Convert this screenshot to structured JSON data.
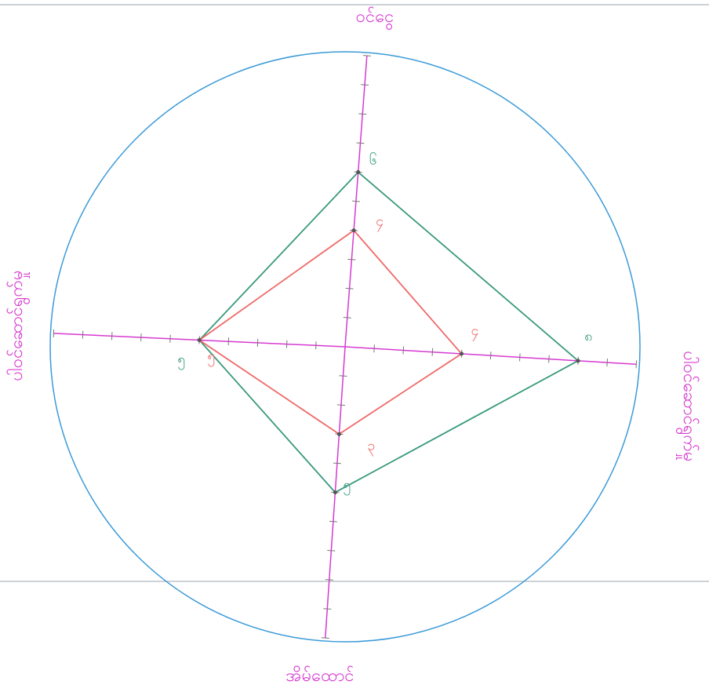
{
  "colors": {
    "circle": "#3b9ad8",
    "axis": "#d63ad0",
    "series_outer": "#3a9a7e",
    "series_inner": "#f06a6a",
    "paper_line": "#9aa4ae"
  },
  "chart_data": {
    "type": "radar",
    "title": "",
    "axes": [
      "ဝင်ငွေ",
      "ပါဝင်ဆောင်ရွက်မှု",
      "အိမ်ထောင်",
      "ပါဝင်ဆောင်ရွက်မှု"
    ],
    "axes_labels_printed": {
      "top": "ဝင်ငွေ",
      "right": "ပါဝင်ဆောင်ရွက်မှု",
      "bottom": "အိမ်ထောင်",
      "left": "ပါဝင်ဆောင်ရွက်မှု"
    },
    "rmax": 10,
    "series": [
      {
        "values": [
          6,
          8,
          5,
          5
        ],
        "labels": [
          "၆",
          "၈",
          "၅",
          "၅"
        ]
      },
      {
        "values": [
          4,
          4,
          3,
          5
        ],
        "labels": [
          "၄",
          "၄",
          "၃",
          "၅"
        ]
      }
    ]
  }
}
